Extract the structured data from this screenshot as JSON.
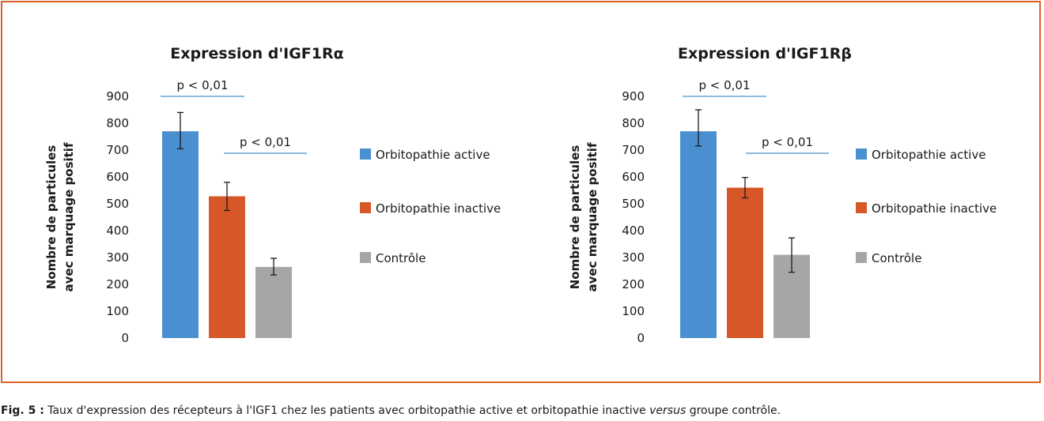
{
  "colors": {
    "frame": "#d9622b",
    "pline": "#4a90c8",
    "errorbar": "#1a1a1a"
  },
  "chart_data": [
    {
      "type": "bar",
      "title": "Expression d'IGF1Rα",
      "ylabel": [
        "Nombre de particules",
        "avec marquage positif"
      ],
      "ylim": [
        0,
        900
      ],
      "yticks": [
        0,
        100,
        200,
        300,
        400,
        500,
        600,
        700,
        800,
        900
      ],
      "grid": false,
      "legend_position": "right",
      "series": [
        {
          "name": "Orbitopathie active",
          "color": "#4a90d0",
          "value": 770,
          "error_low": 705,
          "error_high": 840
        },
        {
          "name": "Orbitopathie inactive",
          "color": "#d65727",
          "value": 528,
          "error_low": 475,
          "error_high": 580
        },
        {
          "name": "Contrôle",
          "color": "#a6a6a6",
          "value": 265,
          "error_low": 235,
          "error_high": 297
        }
      ],
      "annotations": [
        {
          "text": "p < 0,01",
          "between": [
            0,
            1
          ]
        },
        {
          "text": "p < 0,01",
          "between": [
            1,
            2
          ]
        }
      ]
    },
    {
      "type": "bar",
      "title": "Expression d'IGF1Rβ",
      "ylabel": [
        "Nombre de particules",
        "avec marquage positif"
      ],
      "ylim": [
        0,
        900
      ],
      "yticks": [
        0,
        100,
        200,
        300,
        400,
        500,
        600,
        700,
        800,
        900
      ],
      "grid": false,
      "legend_position": "right",
      "series": [
        {
          "name": "Orbitopathie active",
          "color": "#4a90d0",
          "value": 770,
          "error_low": 715,
          "error_high": 850
        },
        {
          "name": "Orbitopathie inactive",
          "color": "#d65727",
          "value": 560,
          "error_low": 522,
          "error_high": 598
        },
        {
          "name": "Contrôle",
          "color": "#a6a6a6",
          "value": 310,
          "error_low": 245,
          "error_high": 373
        }
      ],
      "annotations": [
        {
          "text": "p < 0,01",
          "between": [
            0,
            1
          ]
        },
        {
          "text": "p < 0,01",
          "between": [
            1,
            2
          ]
        }
      ]
    }
  ],
  "caption": {
    "label": "Fig. 5 :",
    "text_before": " Taux d'expression des récepteurs à l'IGF1 chez les patients avec orbitopathie active et orbitopathie inactive ",
    "italic": "versus",
    "text_after": " groupe contrôle."
  }
}
